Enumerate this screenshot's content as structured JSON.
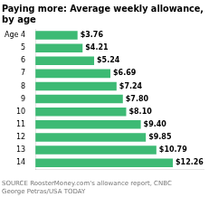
{
  "chart_data": {
    "type": "bar",
    "orientation": "horizontal",
    "title": "Paying more: Average weekly allowance,\nby age",
    "categories": [
      "Age 4",
      "5",
      "6",
      "7",
      "8",
      "9",
      "10",
      "11",
      "12",
      "13",
      "14"
    ],
    "values": [
      3.76,
      4.21,
      5.24,
      6.69,
      7.24,
      7.8,
      8.1,
      9.4,
      9.85,
      10.79,
      12.26
    ],
    "value_labels": [
      "$3.76",
      "$4.21",
      "$5.24",
      "$6.69",
      "$7.24",
      "$7.80",
      "$8.10",
      "$9.40",
      "$9.85",
      "$10.79",
      "$12.26"
    ],
    "data_labels": true,
    "color": "#3dba74",
    "xlim": [
      0,
      15
    ],
    "tick_labels": "y",
    "grid": false,
    "annotations": [
      "SOURCE RoosterMoney.com's allowance report, CNBC\nGeorge Petras/USA TODAY"
    ]
  }
}
